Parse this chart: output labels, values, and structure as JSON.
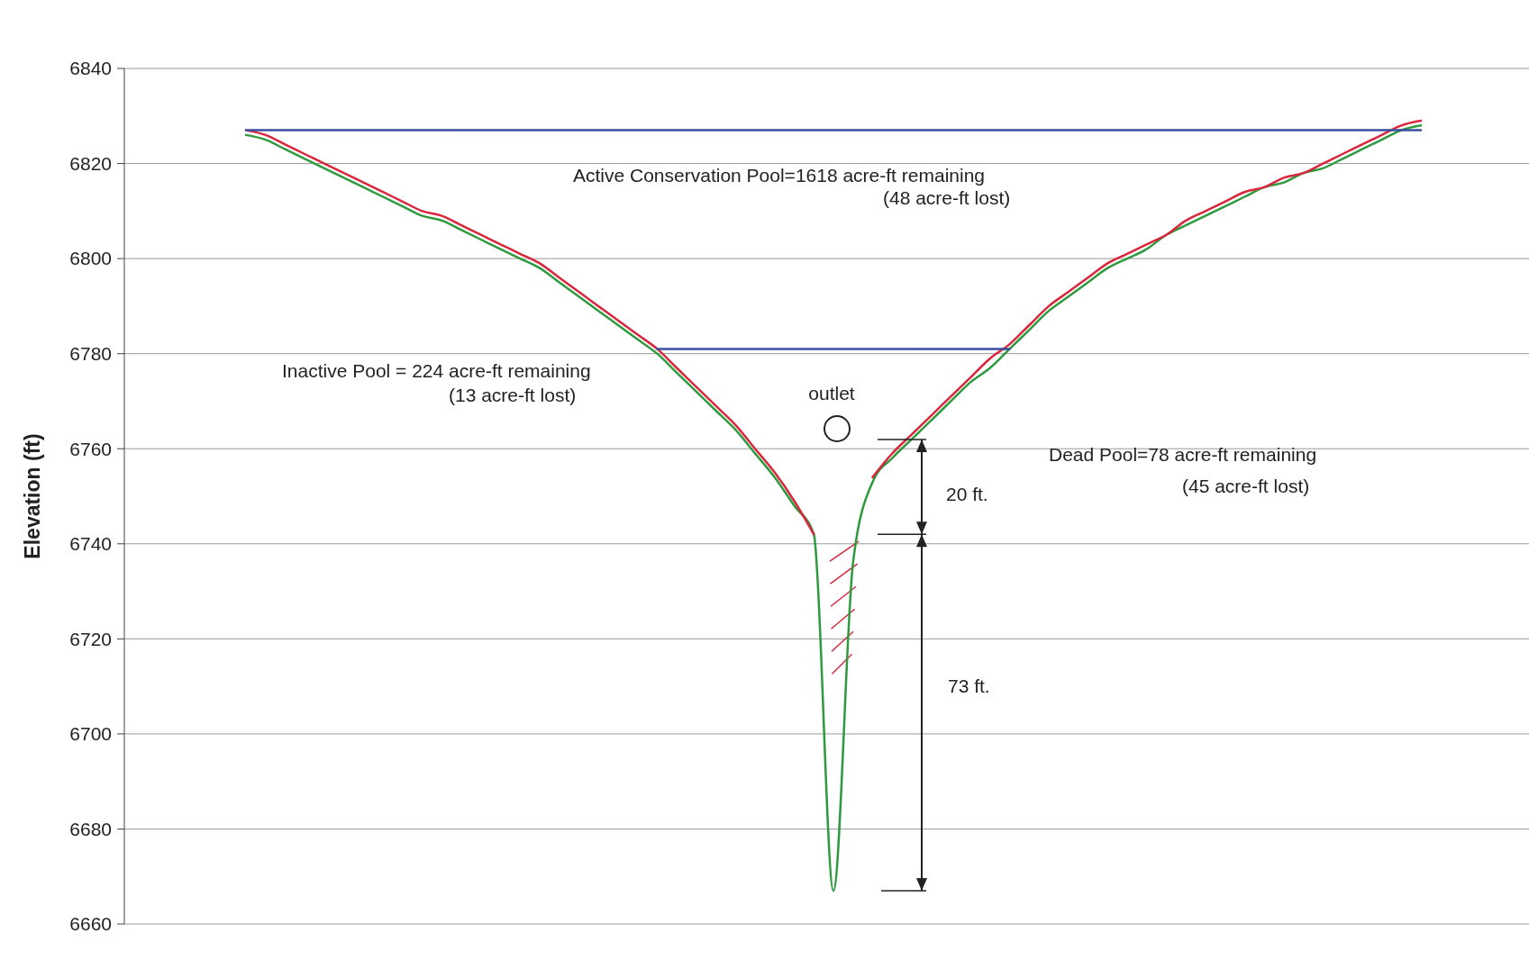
{
  "chart_data": {
    "type": "line",
    "ylabel": "Elevation (ft)",
    "ylim": [
      6660,
      6840
    ],
    "yticks": [
      6660,
      6680,
      6700,
      6720,
      6740,
      6760,
      6780,
      6800,
      6820,
      6840
    ],
    "grid": "y",
    "tick_labels": "y",
    "categories": [
      null,
      null,
      null,
      null,
      null,
      null,
      null,
      null,
      null,
      null,
      null,
      null,
      null,
      null,
      null,
      null,
      null,
      null,
      null,
      null,
      null,
      null,
      null,
      null,
      null,
      null,
      null,
      null,
      null,
      null,
      null,
      null,
      null,
      null,
      null,
      null,
      null,
      null,
      null,
      null,
      null,
      null,
      null,
      null,
      null,
      null,
      null,
      null,
      null,
      null,
      null,
      null,
      null,
      null,
      null,
      null,
      null,
      null,
      null,
      null,
      null
    ],
    "series": [
      {
        "color": "#d9263c",
        "values": [
          6827,
          6826,
          6824,
          6822,
          6820,
          6818,
          6816,
          6814,
          6812,
          6810,
          6809,
          6807,
          6805,
          6803,
          6801,
          6799,
          6796,
          6793,
          6790,
          6787,
          6784,
          6781,
          6777,
          6773,
          6769,
          6765,
          6760,
          6755,
          6749,
          6742,
          null,
          null,
          6754,
          6759,
          6763,
          6767,
          6771,
          6775,
          6779,
          6782,
          6786,
          6790,
          6793,
          6796,
          6799,
          6801,
          6803,
          6805,
          6808,
          6810,
          6812,
          6814,
          6815,
          6817,
          6818,
          6820,
          6822,
          6824,
          6826,
          6828,
          6829
        ]
      },
      {
        "color": "#2e9a3e",
        "values": [
          6826,
          6825,
          6823,
          6821,
          6819,
          6817,
          6815,
          6813,
          6811,
          6809,
          6808,
          6806,
          6804,
          6802,
          6800,
          6798,
          6795,
          6792,
          6789,
          6786,
          6783,
          6780,
          6776,
          6772,
          6768,
          6764,
          6759,
          6754,
          6748,
          6742,
          6667,
          6736,
          6753,
          6758,
          6762,
          6766,
          6770,
          6774,
          6777,
          6781,
          6785,
          6789,
          6792,
          6795,
          6798,
          6800,
          6802,
          6805,
          6807,
          6809,
          6811,
          6813,
          6815,
          6816,
          6818,
          6819,
          6821,
          6823,
          6825,
          6827,
          6828
        ]
      },
      {
        "color": "#3a4fa0",
        "values": [
          6827,
          6827,
          6827,
          6827,
          6827,
          6827,
          6827,
          6827,
          6827,
          6827,
          6827,
          6827,
          6827,
          6827,
          6827,
          6827,
          6827,
          6827,
          6827,
          6827,
          6827,
          6827,
          6827,
          6827,
          6827,
          6827,
          6827,
          6827,
          6827,
          6827,
          6827,
          6827,
          6827,
          6827,
          6827,
          6827,
          6827,
          6827,
          6827,
          6827,
          6827,
          6827,
          6827,
          6827,
          6827,
          6827,
          6827,
          6827,
          6827,
          6827,
          6827,
          6827,
          6827,
          6827,
          6827,
          6827,
          6827,
          6827,
          6827,
          6827,
          6827
        ]
      },
      {
        "color": "#3a4fa0",
        "values": [
          null,
          null,
          null,
          null,
          null,
          null,
          null,
          null,
          null,
          null,
          null,
          null,
          null,
          null,
          null,
          null,
          null,
          null,
          null,
          null,
          null,
          6781,
          6781,
          6781,
          6781,
          6781,
          6781,
          6781,
          6781,
          6781,
          6781,
          6781,
          6781,
          6781,
          6781,
          6781,
          6781,
          6781,
          6781,
          6781,
          null,
          null,
          null,
          null,
          null,
          null,
          null,
          null,
          null,
          null,
          null,
          null,
          null,
          null,
          null,
          null,
          null,
          null,
          null,
          null,
          null
        ]
      }
    ],
    "annotations": [
      "Active Conservation Pool=1618 acre-ft remaining",
      "(48 acre-ft lost)",
      "Inactive Pool = 224 acre-ft remaining",
      "(13 acre-ft lost)",
      "outlet",
      "Dead Pool=78 acre-ft remaining",
      "(45 acre-ft lost)",
      "20 ft.",
      "73 ft."
    ]
  }
}
